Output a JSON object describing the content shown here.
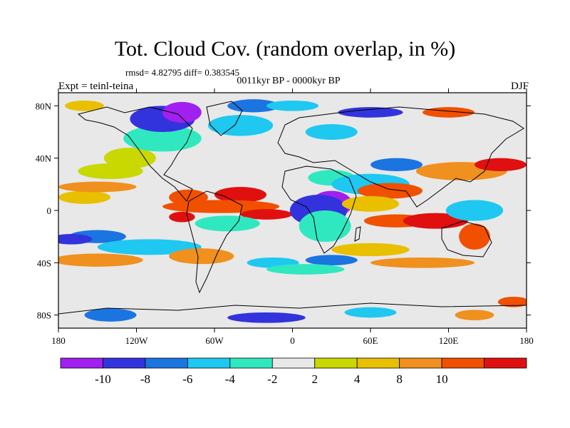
{
  "title": "Tot. Cloud Cov. (random overlap, in %)",
  "stats_line": "rmsd= 4.82795 diff= 0.383545",
  "period": "0011kyr BP - 0000kyr BP",
  "experiment": "Expt = teinl-teina",
  "season": "DJF",
  "map": {
    "projection": "cylindrical equidistant",
    "lon_range": [
      -180,
      180
    ],
    "lat_range": [
      -90,
      90
    ],
    "coastlines": true
  },
  "axes": {
    "x_ticks": [
      {
        "value": -180,
        "label": "180"
      },
      {
        "value": -120,
        "label": "120W"
      },
      {
        "value": -60,
        "label": "60W"
      },
      {
        "value": 0,
        "label": "0"
      },
      {
        "value": 60,
        "label": "60E"
      },
      {
        "value": 120,
        "label": "120E"
      },
      {
        "value": 180,
        "label": "180"
      }
    ],
    "y_ticks": [
      {
        "value": 80,
        "label": "80N"
      },
      {
        "value": 40,
        "label": "40N"
      },
      {
        "value": 0,
        "label": "0"
      },
      {
        "value": -40,
        "label": "40S"
      },
      {
        "value": -80,
        "label": "80S"
      }
    ]
  },
  "colorbar": {
    "colors": [
      "#a020f0",
      "#3333dd",
      "#1a75e0",
      "#1ec8f0",
      "#30e8c0",
      "#e8e8e8",
      "#c8d800",
      "#e8c000",
      "#f0901e",
      "#f05000",
      "#e01010"
    ],
    "labels": [
      {
        "value": -10,
        "label": "-10"
      },
      {
        "value": -8,
        "label": "-8"
      },
      {
        "value": -6,
        "label": "-6"
      },
      {
        "value": -4,
        "label": "-4"
      },
      {
        "value": -2,
        "label": "-2"
      },
      {
        "value": 2,
        "label": "2"
      },
      {
        "value": 4,
        "label": "4"
      },
      {
        "value": 8,
        "label": "8"
      },
      {
        "value": 10,
        "label": "10"
      }
    ]
  },
  "anomaly_regions": [
    {
      "lon": -150,
      "lat": -20,
      "rx": 22,
      "ry": 5,
      "level": 2
    },
    {
      "lon": -170,
      "lat": -22,
      "rx": 16,
      "ry": 4,
      "level": 1
    },
    {
      "lon": -110,
      "lat": -28,
      "rx": 40,
      "ry": 6,
      "level": 3
    },
    {
      "lon": -150,
      "lat": -38,
      "rx": 35,
      "ry": 5,
      "level": 8
    },
    {
      "lon": -140,
      "lat": 30,
      "rx": 25,
      "ry": 6,
      "level": 6
    },
    {
      "lon": -160,
      "lat": 10,
      "rx": 20,
      "ry": 5,
      "level": 7
    },
    {
      "lon": -150,
      "lat": 18,
      "rx": 30,
      "ry": 4,
      "level": 8
    },
    {
      "lon": -125,
      "lat": 40,
      "rx": 20,
      "ry": 8,
      "level": 6
    },
    {
      "lon": -100,
      "lat": 55,
      "rx": 30,
      "ry": 10,
      "level": 4
    },
    {
      "lon": -40,
      "lat": 65,
      "rx": 25,
      "ry": 8,
      "level": 3
    },
    {
      "lon": -80,
      "lat": 10,
      "rx": 15,
      "ry": 6,
      "level": 9
    },
    {
      "lon": -40,
      "lat": 12,
      "rx": 20,
      "ry": 6,
      "level": 10
    },
    {
      "lon": -55,
      "lat": 3,
      "rx": 45,
      "ry": 5,
      "level": 9
    },
    {
      "lon": -85,
      "lat": -5,
      "rx": 10,
      "ry": 4,
      "level": 10
    },
    {
      "lon": -20,
      "lat": -3,
      "rx": 20,
      "ry": 4,
      "level": 10
    },
    {
      "lon": -50,
      "lat": -10,
      "rx": 25,
      "ry": 6,
      "level": 4
    },
    {
      "lon": -70,
      "lat": -35,
      "rx": 25,
      "ry": 6,
      "level": 8
    },
    {
      "lon": 30,
      "lat": 5,
      "rx": 16,
      "ry": 10,
      "level": 0
    },
    {
      "lon": 20,
      "lat": 0,
      "rx": 22,
      "ry": 12,
      "level": 1
    },
    {
      "lon": 25,
      "lat": -12,
      "rx": 20,
      "ry": 12,
      "level": 4
    },
    {
      "lon": 30,
      "lat": 25,
      "rx": 18,
      "ry": 6,
      "level": 4
    },
    {
      "lon": 60,
      "lat": 20,
      "rx": 30,
      "ry": 8,
      "level": 3
    },
    {
      "lon": 75,
      "lat": 15,
      "rx": 25,
      "ry": 6,
      "level": 9
    },
    {
      "lon": 60,
      "lat": 5,
      "rx": 22,
      "ry": 6,
      "level": 7
    },
    {
      "lon": 80,
      "lat": -8,
      "rx": 25,
      "ry": 5,
      "level": 9
    },
    {
      "lon": 110,
      "lat": -8,
      "rx": 25,
      "ry": 6,
      "level": 10
    },
    {
      "lon": 140,
      "lat": 0,
      "rx": 22,
      "ry": 8,
      "level": 3
    },
    {
      "lon": 140,
      "lat": -20,
      "rx": 12,
      "ry": 10,
      "level": 9
    },
    {
      "lon": 130,
      "lat": 30,
      "rx": 35,
      "ry": 7,
      "level": 8
    },
    {
      "lon": 160,
      "lat": 35,
      "rx": 20,
      "ry": 5,
      "level": 10
    },
    {
      "lon": 80,
      "lat": 35,
      "rx": 20,
      "ry": 5,
      "level": 2
    },
    {
      "lon": 60,
      "lat": -30,
      "rx": 30,
      "ry": 5,
      "level": 7
    },
    {
      "lon": 100,
      "lat": -40,
      "rx": 40,
      "ry": 4,
      "level": 8
    },
    {
      "lon": 30,
      "lat": -38,
      "rx": 20,
      "ry": 4,
      "level": 2
    },
    {
      "lon": -15,
      "lat": -40,
      "rx": 20,
      "ry": 4,
      "level": 3
    },
    {
      "lon": 10,
      "lat": -45,
      "rx": 30,
      "ry": 4,
      "level": 4
    },
    {
      "lon": -100,
      "lat": 70,
      "rx": 25,
      "ry": 10,
      "level": 1
    },
    {
      "lon": -85,
      "lat": 75,
      "rx": 15,
      "ry": 8,
      "level": 0
    },
    {
      "lon": -30,
      "lat": 80,
      "rx": 20,
      "ry": 5,
      "level": 2
    },
    {
      "lon": 0,
      "lat": 80,
      "rx": 20,
      "ry": 4,
      "level": 3
    },
    {
      "lon": 60,
      "lat": 75,
      "rx": 25,
      "ry": 4,
      "level": 1
    },
    {
      "lon": 120,
      "lat": 75,
      "rx": 20,
      "ry": 4,
      "level": 9
    },
    {
      "lon": -160,
      "lat": 80,
      "rx": 15,
      "ry": 4,
      "level": 7
    },
    {
      "lon": 30,
      "lat": 60,
      "rx": 20,
      "ry": 6,
      "level": 3
    },
    {
      "lon": -140,
      "lat": -80,
      "rx": 20,
      "ry": 5,
      "level": 2
    },
    {
      "lon": -20,
      "lat": -82,
      "rx": 30,
      "ry": 4,
      "level": 1
    },
    {
      "lon": 60,
      "lat": -78,
      "rx": 20,
      "ry": 4,
      "level": 3
    },
    {
      "lon": 140,
      "lat": -80,
      "rx": 15,
      "ry": 4,
      "level": 8
    },
    {
      "lon": 170,
      "lat": -70,
      "rx": 12,
      "ry": 4,
      "level": 9
    }
  ]
}
